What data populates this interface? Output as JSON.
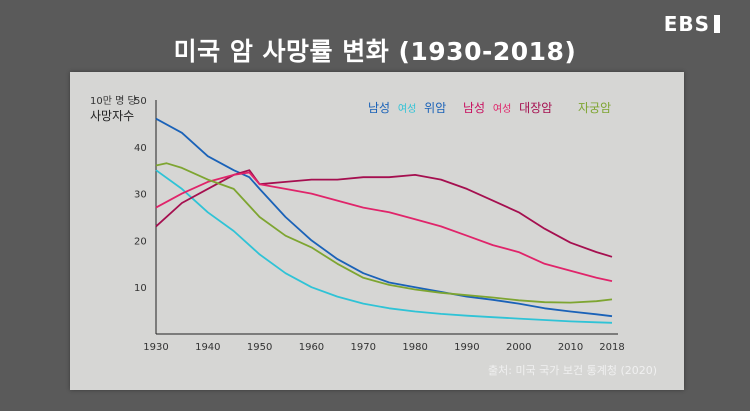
{
  "header": {
    "logo": "EBS",
    "title": "미국 암 사망률 변화 (1930-2018)"
  },
  "chart_data": {
    "type": "line",
    "title": "미국 암 사망률 변화 (1930-2018)",
    "ylabel_top": "10만 명 당",
    "ylabel": "사망자수",
    "xlim": [
      1930,
      2018
    ],
    "ylim": [
      0,
      50
    ],
    "x_ticks": [
      "1930",
      "1940",
      "1950",
      "1960",
      "1970",
      "1980",
      "1990",
      "2000",
      "2010",
      "2018"
    ],
    "y_ticks": [
      "10",
      "20",
      "30",
      "40",
      "50"
    ],
    "grid": false,
    "legend_position": "top-right",
    "legend": [
      {
        "word": "남성",
        "color": "#1a62b8"
      },
      {
        "word": "여성",
        "color": "#2fc3d6"
      },
      {
        "word": "위암",
        "color": "#1a62b8"
      },
      {
        "word": "남성",
        "color": "#c8105f"
      },
      {
        "word": "여성",
        "color": "#e0246a"
      },
      {
        "word": "대장암",
        "color": "#a50f4f"
      },
      {
        "word": "자궁암",
        "color": "#7ea531"
      }
    ],
    "series": [
      {
        "key": "stomach_male",
        "color": "#1a62b8",
        "points": [
          [
            1930,
            46
          ],
          [
            1935,
            43
          ],
          [
            1940,
            38
          ],
          [
            1945,
            35
          ],
          [
            1948,
            33.5
          ],
          [
            1950,
            31
          ],
          [
            1955,
            25
          ],
          [
            1960,
            20
          ],
          [
            1965,
            16
          ],
          [
            1970,
            13
          ],
          [
            1975,
            11
          ],
          [
            1980,
            10
          ],
          [
            1985,
            9
          ],
          [
            1990,
            8
          ],
          [
            1995,
            7.3
          ],
          [
            2000,
            6.5
          ],
          [
            2005,
            5.5
          ],
          [
            2010,
            4.8
          ],
          [
            2015,
            4.2
          ],
          [
            2018,
            3.8
          ]
        ]
      },
      {
        "key": "stomach_female",
        "color": "#2fc3d6",
        "points": [
          [
            1930,
            35
          ],
          [
            1935,
            31
          ],
          [
            1940,
            26
          ],
          [
            1945,
            22
          ],
          [
            1950,
            17
          ],
          [
            1955,
            13
          ],
          [
            1960,
            10
          ],
          [
            1965,
            8
          ],
          [
            1970,
            6.5
          ],
          [
            1975,
            5.5
          ],
          [
            1980,
            4.8
          ],
          [
            1985,
            4.3
          ],
          [
            1990,
            3.9
          ],
          [
            1995,
            3.6
          ],
          [
            2000,
            3.3
          ],
          [
            2005,
            3
          ],
          [
            2010,
            2.7
          ],
          [
            2015,
            2.5
          ],
          [
            2018,
            2.4
          ]
        ]
      },
      {
        "key": "colorectal_male",
        "color": "#a50f4f",
        "points": [
          [
            1930,
            23
          ],
          [
            1935,
            28
          ],
          [
            1940,
            31
          ],
          [
            1945,
            34
          ],
          [
            1948,
            35
          ],
          [
            1950,
            32
          ],
          [
            1955,
            32.5
          ],
          [
            1960,
            33
          ],
          [
            1965,
            33
          ],
          [
            1970,
            33.5
          ],
          [
            1975,
            33.5
          ],
          [
            1980,
            34
          ],
          [
            1985,
            33
          ],
          [
            1990,
            31
          ],
          [
            1995,
            28.5
          ],
          [
            2000,
            26
          ],
          [
            2005,
            22.5
          ],
          [
            2010,
            19.5
          ],
          [
            2015,
            17.5
          ],
          [
            2018,
            16.5
          ]
        ]
      },
      {
        "key": "colorectal_female",
        "color": "#e0246a",
        "points": [
          [
            1930,
            27
          ],
          [
            1935,
            30
          ],
          [
            1940,
            32.5
          ],
          [
            1945,
            34
          ],
          [
            1948,
            34.5
          ],
          [
            1950,
            32
          ],
          [
            1955,
            31
          ],
          [
            1960,
            30
          ],
          [
            1965,
            28.5
          ],
          [
            1970,
            27
          ],
          [
            1975,
            26
          ],
          [
            1980,
            24.5
          ],
          [
            1985,
            23
          ],
          [
            1990,
            21
          ],
          [
            1995,
            19
          ],
          [
            2000,
            17.5
          ],
          [
            2005,
            15
          ],
          [
            2010,
            13.5
          ],
          [
            2015,
            12
          ],
          [
            2018,
            11.3
          ]
        ]
      },
      {
        "key": "cervical",
        "color": "#7ea531",
        "points": [
          [
            1930,
            36
          ],
          [
            1932,
            36.5
          ],
          [
            1935,
            35.5
          ],
          [
            1940,
            33
          ],
          [
            1945,
            31
          ],
          [
            1950,
            25
          ],
          [
            1955,
            21
          ],
          [
            1960,
            18.5
          ],
          [
            1965,
            15
          ],
          [
            1970,
            12
          ],
          [
            1975,
            10.5
          ],
          [
            1980,
            9.5
          ],
          [
            1985,
            8.8
          ],
          [
            1990,
            8.3
          ],
          [
            1995,
            7.8
          ],
          [
            2000,
            7.2
          ],
          [
            2005,
            6.8
          ],
          [
            2010,
            6.7
          ],
          [
            2015,
            7
          ],
          [
            2018,
            7.4
          ]
        ]
      }
    ]
  },
  "source": "출처: 미국 국가 보건 통계청 (2020)"
}
